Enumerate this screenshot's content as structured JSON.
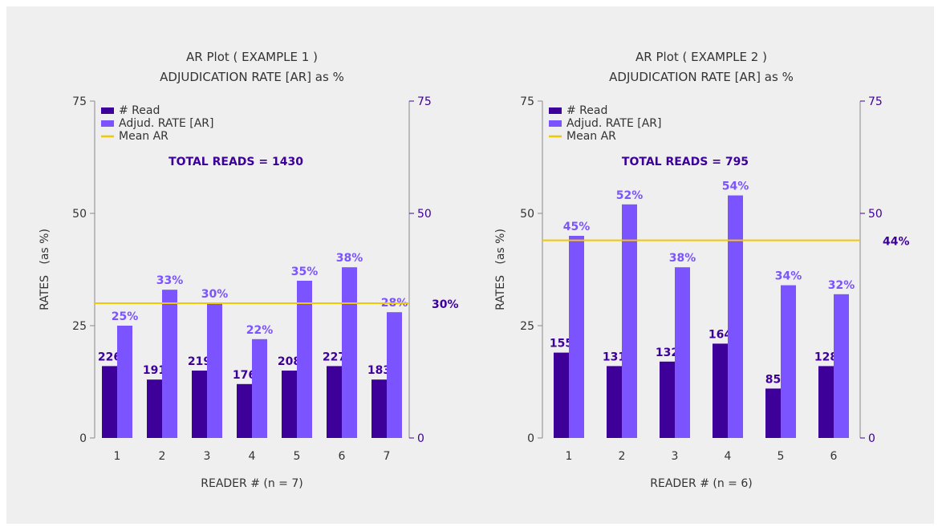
{
  "colors": {
    "background": "#efefef",
    "read": "#3d0099",
    "ar": "#7b53ff",
    "mean": "#f2c800",
    "axis_text": "#333333",
    "right_axis": "#3d0099",
    "ar_label": "#7b53ff"
  },
  "chart_data": [
    {
      "type": "bar",
      "title": "AR Plot ( EXAMPLE 1 )",
      "subtitle": "ADJUDICATION RATE [AR] as %",
      "xlabel": "READER # (n = 7)",
      "ylabel": "RATES   (as %)",
      "ylim": [
        0,
        75
      ],
      "yticks": [
        0,
        25,
        50,
        75
      ],
      "right_yticks": [
        0,
        50,
        75
      ],
      "categories": [
        "1",
        "2",
        "3",
        "4",
        "5",
        "6",
        "7"
      ],
      "legend": {
        "position": "top-left",
        "entries": [
          "# Read",
          "Adjud. RATE [AR]",
          "Mean AR"
        ]
      },
      "total_label": "TOTAL READS = 1430",
      "series": [
        {
          "name": "# Read",
          "values": [
            16,
            13,
            15,
            12,
            15,
            16,
            13
          ],
          "labels": [
            "226",
            "191",
            "219",
            "176",
            "208",
            "227",
            "183"
          ]
        },
        {
          "name": "Adjud. RATE [AR]",
          "values": [
            25,
            33,
            30,
            22,
            35,
            38,
            28
          ],
          "labels": [
            "25%",
            "33%",
            "30%",
            "22%",
            "35%",
            "38%",
            "28%"
          ]
        }
      ],
      "mean_ar": 30,
      "mean_label": "30%",
      "grid": false
    },
    {
      "type": "bar",
      "title": "AR Plot ( EXAMPLE 2 )",
      "subtitle": "ADJUDICATION RATE [AR] as %",
      "xlabel": "READER # (n = 6)",
      "ylabel": "RATES   (as %)",
      "ylim": [
        0,
        75
      ],
      "yticks": [
        0,
        25,
        50,
        75
      ],
      "right_yticks": [
        0,
        50,
        75
      ],
      "categories": [
        "1",
        "2",
        "3",
        "4",
        "5",
        "6"
      ],
      "legend": {
        "position": "top-left",
        "entries": [
          "# Read",
          "Adjud. RATE [AR]",
          "Mean AR"
        ]
      },
      "total_label": "TOTAL READS = 795",
      "series": [
        {
          "name": "# Read",
          "values": [
            19,
            16,
            17,
            21,
            11,
            16
          ],
          "labels": [
            "155",
            "131",
            "132",
            "164",
            "85",
            "128"
          ]
        },
        {
          "name": "Adjud. RATE [AR]",
          "values": [
            45,
            52,
            38,
            54,
            34,
            32
          ],
          "labels": [
            "45%",
            "52%",
            "38%",
            "54%",
            "34%",
            "32%"
          ]
        }
      ],
      "mean_ar": 44,
      "mean_label": "44%",
      "grid": false
    }
  ]
}
